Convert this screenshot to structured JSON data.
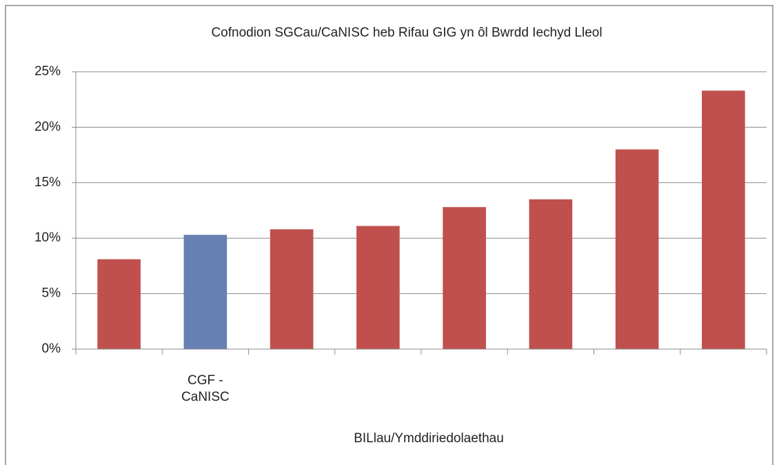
{
  "chart_data": {
    "type": "bar",
    "title": "Cofnodion SGCau/CaNISC heb Rifau GIG yn ôl Bwrdd Iechyd Lleol",
    "x_label": "BILlau/Ymddiriedolaethau",
    "categories": [
      null,
      "CGF - CaNISC",
      null,
      null,
      null,
      null,
      null,
      null
    ],
    "values": [
      8.1,
      10.3,
      10.8,
      11.1,
      12.8,
      13.5,
      18.0,
      23.3
    ],
    "colors": [
      "#c0504d",
      "#6680b3",
      "#c0504d",
      "#c0504d",
      "#c0504d",
      "#c0504d",
      "#c0504d",
      "#c0504d"
    ],
    "ylim": [
      0,
      25
    ],
    "yticks": [
      {
        "value": 0,
        "label": "0%"
      },
      {
        "value": 5,
        "label": "5%"
      },
      {
        "value": 10,
        "label": "10%"
      },
      {
        "value": 15,
        "label": "15%"
      },
      {
        "value": 20,
        "label": "20%"
      },
      {
        "value": 25,
        "label": "25%"
      }
    ],
    "grid": true
  }
}
